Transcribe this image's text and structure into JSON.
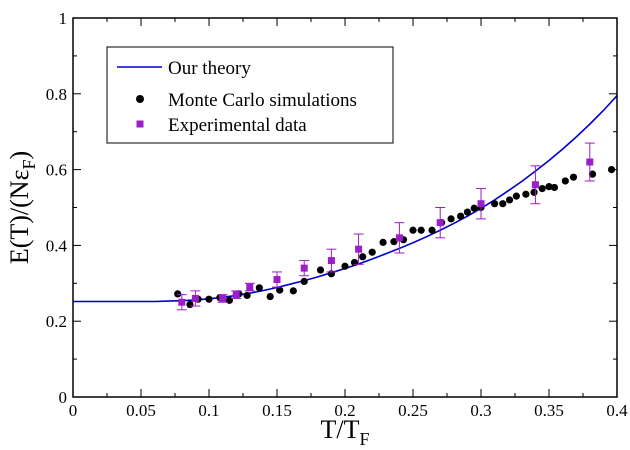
{
  "chart_data": {
    "type": "scatter",
    "xlabel": "T/T",
    "xlabel_sub": "F",
    "ylabel": "E(T)/(Nε",
    "ylabel_sub": "F",
    "ylabel_close": ")",
    "xlim": [
      0,
      0.4
    ],
    "ylim": [
      0,
      1
    ],
    "xticks": [
      0,
      0.05,
      0.1,
      0.15,
      0.2,
      0.25,
      0.3,
      0.35,
      0.4
    ],
    "xtick_labels": [
      "0",
      "0.05",
      "0.1",
      "0.15",
      "0.2",
      "0.25",
      "0.3",
      "0.35",
      "0.4"
    ],
    "yticks": [
      0,
      0.2,
      0.4,
      0.6,
      0.8,
      1
    ],
    "ytick_labels": [
      "0",
      "0.2",
      "0.4",
      "0.6",
      "0.8",
      "1"
    ],
    "grid": false,
    "legend_position": "top-left",
    "colors": {
      "theory": "#0000cc",
      "monte_carlo": "#000000",
      "experimental": "#9b1ec8"
    },
    "series": [
      {
        "name": "Our theory",
        "kind": "line",
        "x": [
          0,
          0.02,
          0.04,
          0.06,
          0.07,
          0.08,
          0.09,
          0.1,
          0.11,
          0.12,
          0.13,
          0.14,
          0.15,
          0.16,
          0.17,
          0.18,
          0.19,
          0.2,
          0.21,
          0.22,
          0.23,
          0.24,
          0.25,
          0.26,
          0.27,
          0.28,
          0.29,
          0.3,
          0.31,
          0.32,
          0.33,
          0.34,
          0.35,
          0.36,
          0.37,
          0.38,
          0.39,
          0.4
        ],
        "y": [
          0.252,
          0.252,
          0.252,
          0.252,
          0.253,
          0.254,
          0.256,
          0.259,
          0.263,
          0.268,
          0.274,
          0.281,
          0.289,
          0.298,
          0.307,
          0.317,
          0.328,
          0.339,
          0.351,
          0.364,
          0.378,
          0.392,
          0.407,
          0.423,
          0.44,
          0.458,
          0.477,
          0.498,
          0.52,
          0.544,
          0.569,
          0.596,
          0.624,
          0.654,
          0.686,
          0.72,
          0.756,
          0.795
        ]
      },
      {
        "name": "Monte Carlo simulations",
        "kind": "points",
        "x": [
          0.077,
          0.086,
          0.092,
          0.1,
          0.108,
          0.115,
          0.122,
          0.128,
          0.137,
          0.145,
          0.152,
          0.162,
          0.17,
          0.182,
          0.19,
          0.2,
          0.207,
          0.213,
          0.22,
          0.228,
          0.236,
          0.243,
          0.25,
          0.256,
          0.264,
          0.271,
          0.278,
          0.285,
          0.29,
          0.295,
          0.3,
          0.31,
          0.316,
          0.321,
          0.326,
          0.333,
          0.339,
          0.345,
          0.35,
          0.354,
          0.362,
          0.368,
          0.382,
          0.396
        ],
        "y": [
          0.272,
          0.244,
          0.258,
          0.258,
          0.262,
          0.255,
          0.272,
          0.268,
          0.288,
          0.265,
          0.282,
          0.28,
          0.305,
          0.335,
          0.325,
          0.345,
          0.355,
          0.37,
          0.382,
          0.408,
          0.41,
          0.415,
          0.44,
          0.44,
          0.44,
          0.46,
          0.47,
          0.477,
          0.488,
          0.498,
          0.5,
          0.51,
          0.51,
          0.52,
          0.53,
          0.535,
          0.54,
          0.55,
          0.555,
          0.553,
          0.57,
          0.58,
          0.588,
          0.6
        ]
      },
      {
        "name": "Experimental data",
        "kind": "points_errorbars",
        "x": [
          0.08,
          0.09,
          0.11,
          0.12,
          0.13,
          0.15,
          0.17,
          0.19,
          0.21,
          0.24,
          0.27,
          0.3,
          0.34,
          0.38
        ],
        "y": [
          0.25,
          0.26,
          0.26,
          0.27,
          0.29,
          0.31,
          0.34,
          0.36,
          0.39,
          0.42,
          0.46,
          0.51,
          0.56,
          0.62
        ],
        "err": [
          0.02,
          0.02,
          0.01,
          0.01,
          0.01,
          0.02,
          0.02,
          0.03,
          0.04,
          0.04,
          0.04,
          0.04,
          0.05,
          0.05
        ]
      }
    ]
  }
}
